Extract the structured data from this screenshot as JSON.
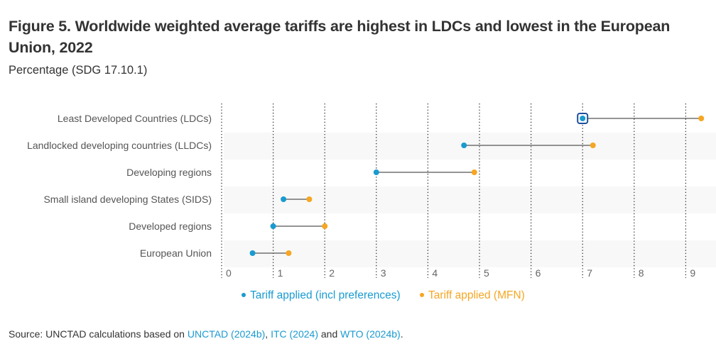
{
  "header": {
    "title": "Figure 5. Worldwide weighted average tariffs are highest in LDCs and lowest in the European Union, 2022",
    "subtitle": "Percentage (SDG 17.10.1)"
  },
  "colors": {
    "preferences": "#1a9bd0",
    "mfn": "#f5a623",
    "connector": "#555555",
    "band": "#f8f8f8",
    "focus": "#1f4e9c"
  },
  "chart_data": {
    "type": "dumbbell",
    "title": "Figure 5. Worldwide weighted average tariffs are highest in LDCs and lowest in the European Union, 2022",
    "subtitle": "Percentage (SDG 17.10.1)",
    "xlabel": "",
    "ylabel": "",
    "xlim": [
      0,
      9.4
    ],
    "x_ticks": [
      "0",
      "1",
      "2",
      "3",
      "4",
      "5",
      "6",
      "7",
      "8",
      "9"
    ],
    "grid": "vertical dotted",
    "categories": [
      "Least Developed Countries (LDCs)",
      "Landlocked developing countries (LLDCs)",
      "Developing regions",
      "Small island developing States (SIDS)",
      "Developed regions",
      "European Union"
    ],
    "series": [
      {
        "name": "Tariff applied (incl preferences)",
        "values": [
          7.0,
          4.7,
          3.0,
          1.2,
          1.0,
          0.6
        ]
      },
      {
        "name": "Tariff applied (MFN)",
        "values": [
          9.3,
          7.2,
          4.9,
          1.7,
          2.0,
          1.3
        ]
      }
    ],
    "legend": "bottom-center",
    "highlighted_point": {
      "category": "Least Developed Countries (LDCs)",
      "series": "Tariff applied (incl preferences)"
    }
  },
  "legend": {
    "items": [
      {
        "label": "Tariff applied (incl preferences)"
      },
      {
        "label": "Tariff applied (MFN)"
      }
    ]
  },
  "source": {
    "prefix": "Source: UNCTAD calculations based on ",
    "link1": "UNCTAD (2024b)",
    "sep1": ", ",
    "link2": "ITC (2024)",
    "sep2": " and ",
    "link3": "WTO (2024b)",
    "suffix": "."
  }
}
